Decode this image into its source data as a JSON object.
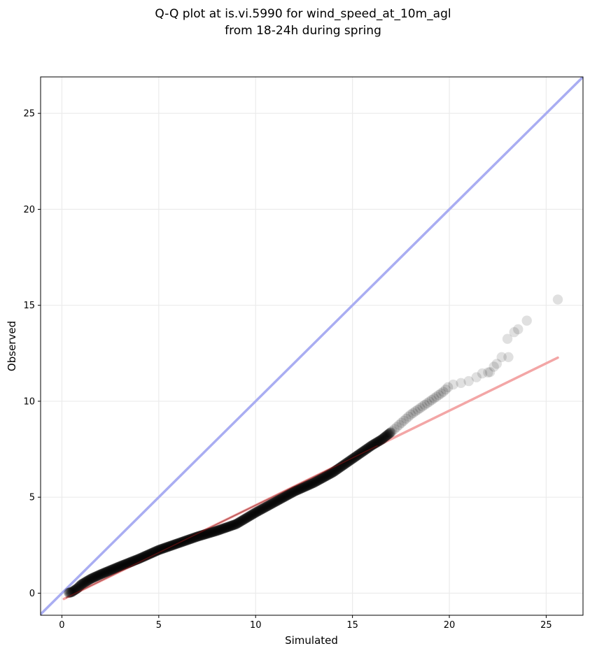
{
  "chart_data": {
    "type": "scatter",
    "title_lines": [
      "Q-Q plot at is.vi.5990 for wind_speed_at_10m_agl",
      "from 18-24h during spring"
    ],
    "xlabel": "Simulated",
    "ylabel": "Observed",
    "xlim": [
      -1.1,
      26.9
    ],
    "ylim": [
      -1.15,
      26.9
    ],
    "xticks": [
      0,
      5,
      10,
      15,
      20,
      25
    ],
    "yticks": [
      0,
      5,
      10,
      15,
      20,
      25
    ],
    "tick_labels_x": [
      "0",
      "5",
      "10",
      "15",
      "20",
      "25"
    ],
    "tick_labels_y": [
      "0",
      "5",
      "10",
      "15",
      "20",
      "25"
    ],
    "grid": true,
    "colors": {
      "points": "#000000",
      "identity_line": "#a9adf2",
      "fit_line": "#f3a6a6",
      "fit_line_dense": "#8b1a1a",
      "grid": "#ebebeb"
    },
    "identity_line": {
      "x": [
        -1.1,
        26.9
      ],
      "y": [
        -1.1,
        26.9
      ]
    },
    "fit_line": {
      "x": [
        0.1,
        25.6
      ],
      "y": [
        -0.3,
        12.27
      ]
    },
    "anchors": {
      "x": [
        0.35,
        0.5,
        0.8,
        1.0,
        1.5,
        2,
        3,
        4,
        5,
        6,
        7,
        8,
        9,
        10,
        11,
        12,
        13,
        14,
        15,
        16,
        16.5,
        17,
        18,
        19,
        19.7,
        20
      ],
      "y": [
        0.02,
        0.05,
        0.25,
        0.45,
        0.75,
        0.98,
        1.4,
        1.8,
        2.25,
        2.6,
        2.95,
        3.25,
        3.6,
        4.2,
        4.75,
        5.3,
        5.75,
        6.3,
        7.0,
        7.7,
        8.0,
        8.4,
        9.3,
        10.0,
        10.5,
        10.8
      ]
    },
    "tail_points": [
      [
        20.2,
        10.87
      ],
      [
        20.6,
        10.95
      ],
      [
        21.0,
        11.05
      ],
      [
        21.4,
        11.25
      ],
      [
        21.7,
        11.45
      ],
      [
        22.0,
        11.5
      ],
      [
        22.1,
        11.52
      ],
      [
        22.3,
        11.8
      ],
      [
        22.45,
        11.95
      ],
      [
        22.7,
        12.3
      ],
      [
        23.05,
        12.3
      ],
      [
        23.0,
        13.25
      ],
      [
        23.35,
        13.6
      ],
      [
        23.55,
        13.75
      ],
      [
        24.0,
        14.2
      ],
      [
        25.6,
        15.3
      ]
    ]
  }
}
